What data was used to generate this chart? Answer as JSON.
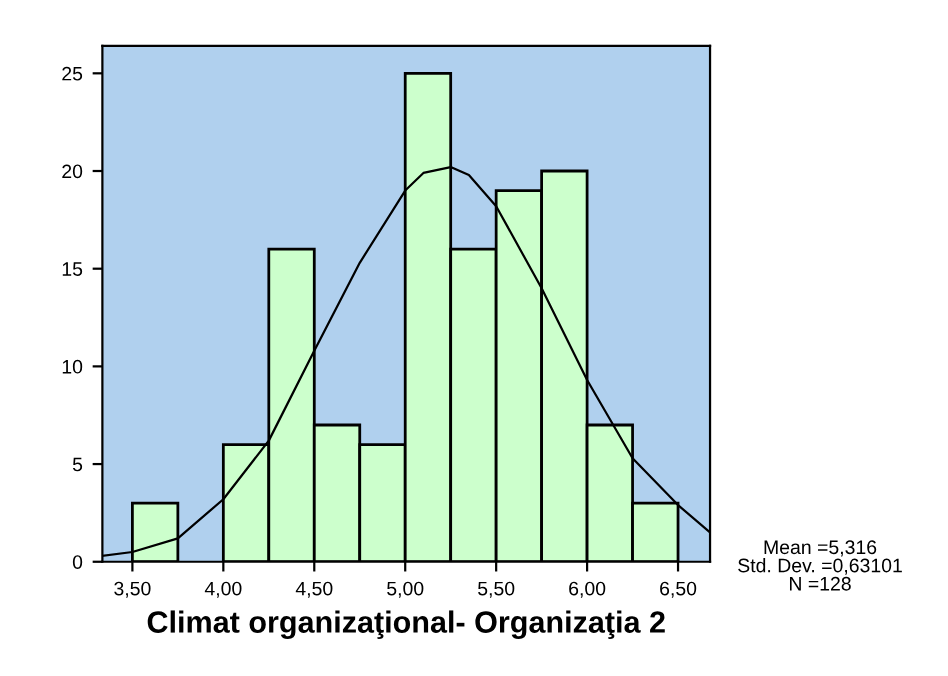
{
  "chart_data": {
    "type": "histogram",
    "xlabel": "Climat organizaţional- Organizaţia 2",
    "series": [
      {
        "color": "#ccffcc",
        "bins": [
          3.5,
          3.75,
          4.0,
          4.25,
          4.5,
          4.75,
          5.0,
          5.25,
          5.5,
          5.75,
          6.0,
          6.25,
          6.5
        ],
        "values": [
          3,
          0,
          6,
          16,
          7,
          6,
          25,
          16,
          19,
          20,
          7,
          3
        ]
      },
      {
        "type": "line",
        "color": "#000000",
        "x": [
          3.335,
          3.5,
          3.75,
          4.0,
          4.25,
          4.5,
          4.75,
          5.0,
          5.1,
          5.25,
          5.35,
          5.5,
          5.75,
          6.0,
          6.25,
          6.5,
          6.676
        ],
        "values": [
          0.3,
          0.5,
          1.2,
          3.2,
          6.2,
          10.8,
          15.3,
          19.0,
          19.9,
          20.2,
          19.8,
          18.2,
          14.0,
          9.3,
          5.3,
          2.9,
          1.5
        ]
      }
    ],
    "xlim": [
      3.335,
      6.676
    ],
    "ylim": [
      0,
      26.4
    ],
    "xticks": [
      {
        "value": 3.5,
        "label": "3,50"
      },
      {
        "value": 4.0,
        "label": "4,00"
      },
      {
        "value": 4.5,
        "label": "4,50"
      },
      {
        "value": 5.0,
        "label": "5,00"
      },
      {
        "value": 5.5,
        "label": "5,50"
      },
      {
        "value": 6.0,
        "label": "6,00"
      },
      {
        "value": 6.5,
        "label": "6,50"
      }
    ],
    "yticks": [
      0,
      5,
      10,
      15,
      20,
      25
    ],
    "grid": false,
    "legend": false,
    "annotations": [
      "Mean =5,316",
      "Std. Dev. =0,63101",
      "N =128"
    ]
  }
}
